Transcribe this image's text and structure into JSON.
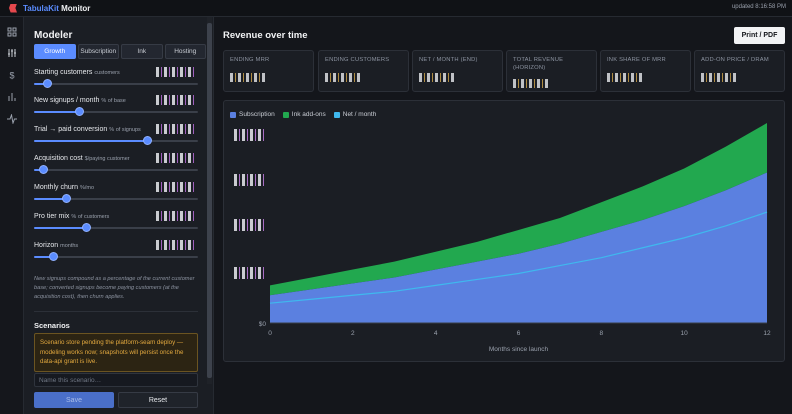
{
  "app": {
    "title_part1": "TabulaKit",
    "title_part2": " Monitor",
    "updated": "updated 8:16:58 PM"
  },
  "rail": {
    "icons": [
      "grid-icon",
      "sliders-icon",
      "dollar-icon",
      "bar-chart-icon",
      "activity-icon"
    ]
  },
  "modeler": {
    "title": "Modeler",
    "tabs": [
      "Growth",
      "Subscription",
      "Ink",
      "Hosting"
    ],
    "active_tab": "Growth",
    "params": [
      {
        "label": "Starting customers",
        "unit": "customers",
        "level": 0.08
      },
      {
        "label": "New signups / month",
        "unit": "% of base",
        "level": 0.28
      },
      {
        "label": "Trial → paid conversion",
        "unit": "% of signups",
        "level": 0.69
      },
      {
        "label": "Acquisition cost",
        "unit": "$/paying customer",
        "level": 0.06
      },
      {
        "label": "Monthly churn",
        "unit": "%/mo",
        "level": 0.2
      },
      {
        "label": "Pro tier mix",
        "unit": "% of customers",
        "level": 0.32
      },
      {
        "label": "Horizon",
        "unit": "months",
        "level": 0.12
      }
    ],
    "help": "New signups compound as a percentage of the current customer base; converted signups become paying customers (at the acquisition cost), then churn applies."
  },
  "scenarios": {
    "title": "Scenarios",
    "notice": "Scenario store pending the platform-seam deploy — modeling works now; snapshots will persist once the data-api grant is live.",
    "name_placeholder": "Name this scenario…",
    "save_label": "Save",
    "reset_label": "Reset"
  },
  "main": {
    "title": "Revenue over time",
    "print_label": "Print / PDF",
    "kpis": [
      {
        "label": "Ending MRR"
      },
      {
        "label": "Ending customers"
      },
      {
        "label": "Net / month (end)"
      },
      {
        "label": "Total revenue (horizon)"
      },
      {
        "label": "Ink share of MRR"
      },
      {
        "label": "Add-on price / dram"
      }
    ]
  },
  "colors": {
    "subscription": "#5b80e0",
    "ink": "#22a84f",
    "net": "#3fb8ee",
    "accent": "#5b8cff"
  },
  "chart_data": {
    "type": "area",
    "xlabel": "Months since launch",
    "x_ticks": [
      0,
      2,
      4,
      6,
      8,
      10,
      12
    ],
    "xlim": [
      0,
      12
    ],
    "y_zero_label": "$0",
    "ylim": [
      0,
      1
    ],
    "series": [
      {
        "name": "Subscription",
        "key": "subscription",
        "type": "stacked-area",
        "x": [
          0,
          1,
          2,
          3,
          4,
          5,
          6,
          7,
          8,
          9,
          10,
          11,
          12
        ],
        "values": [
          0.14,
          0.17,
          0.2,
          0.23,
          0.27,
          0.31,
          0.35,
          0.4,
          0.46,
          0.52,
          0.59,
          0.67,
          0.76
        ]
      },
      {
        "name": "Ink add-ons",
        "key": "ink",
        "type": "stacked-area",
        "x": [
          0,
          1,
          2,
          3,
          4,
          5,
          6,
          7,
          8,
          9,
          10,
          11,
          12
        ],
        "values": [
          0.05,
          0.06,
          0.07,
          0.08,
          0.09,
          0.1,
          0.12,
          0.13,
          0.15,
          0.17,
          0.19,
          0.22,
          0.25
        ]
      },
      {
        "name": "Net / month",
        "key": "net",
        "type": "line",
        "x": [
          0,
          1,
          2,
          3,
          4,
          5,
          6,
          7,
          8,
          9,
          10,
          11,
          12
        ],
        "values": [
          0.1,
          0.12,
          0.14,
          0.16,
          0.19,
          0.22,
          0.25,
          0.29,
          0.33,
          0.38,
          0.43,
          0.49,
          0.56
        ]
      }
    ],
    "grid": false,
    "legend": "top-left"
  }
}
